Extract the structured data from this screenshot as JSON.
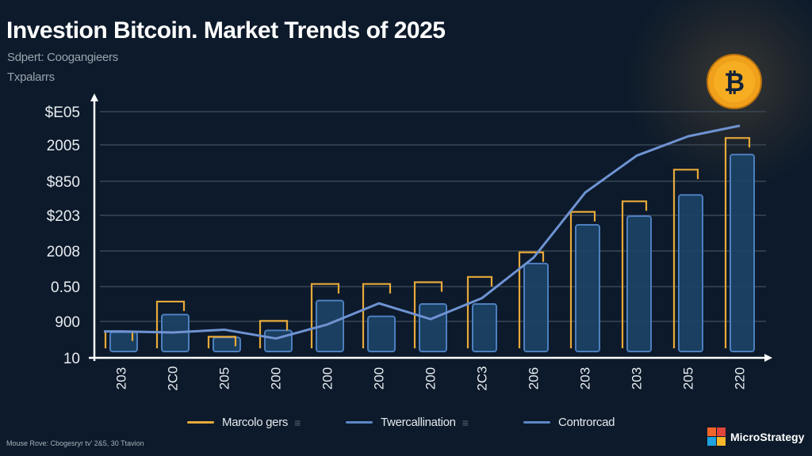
{
  "header": {
    "title": "Investion Bitcoin. Market Trends of 2025",
    "subtitle_1": "Sdpert: Coogangieers",
    "subtitle_2": "Txpalarrs"
  },
  "chart_data": {
    "type": "bar",
    "title": "Investion Bitcoin. Market Trends of 2025",
    "xlabel": "",
    "ylabel": "",
    "y_tick_labels": [
      "10",
      "900",
      "0.50",
      "2008",
      "$203",
      "$850",
      "2005",
      "$E05"
    ],
    "ylim": [
      0,
      7
    ],
    "grid": true,
    "categories": [
      "203",
      "2C0",
      "205",
      "200",
      "200",
      "200",
      "200",
      "2C3",
      "206",
      "203",
      "203",
      "205",
      "220"
    ],
    "series": [
      {
        "name": "Marcolo gers",
        "type": "bar-outline",
        "color": "#e7a93a",
        "values": [
          0.75,
          1.6,
          0.6,
          1.05,
          2.1,
          2.1,
          2.15,
          2.3,
          3.0,
          4.15,
          4.45,
          5.35,
          6.25
        ]
      },
      {
        "name": "Twercallination",
        "type": "bar",
        "color": "#4d7fbf",
        "values": [
          0.55,
          1.05,
          0.4,
          0.6,
          1.45,
          1.0,
          1.35,
          1.35,
          2.5,
          3.6,
          3.85,
          4.45,
          5.6
        ]
      },
      {
        "name": "Controrcad",
        "type": "line",
        "color": "#6f93d2",
        "values": [
          0.75,
          0.72,
          0.8,
          0.55,
          0.95,
          1.55,
          1.1,
          1.7,
          2.85,
          4.7,
          5.75,
          6.3,
          6.6
        ]
      }
    ],
    "legend_position": "bottom"
  },
  "legend": [
    {
      "label": "Marcolo gers",
      "color": "#e7a93a",
      "extra": "≡"
    },
    {
      "label": "Twercallination",
      "color": "#5b87c6",
      "extra": "≡"
    },
    {
      "label": "Controrcad",
      "color": "#5b87c6",
      "extra": ""
    }
  ],
  "footer": {
    "source": "Mouse Rove: Cbogesryr tv' 2&5, 30 Ttavion",
    "brand_name": "MicroStrategy",
    "brand_colors": [
      "#f2642a",
      "#e0443a",
      "#1ea3e0",
      "#f5b82a"
    ]
  },
  "icons": {
    "bitcoin": "₿"
  }
}
